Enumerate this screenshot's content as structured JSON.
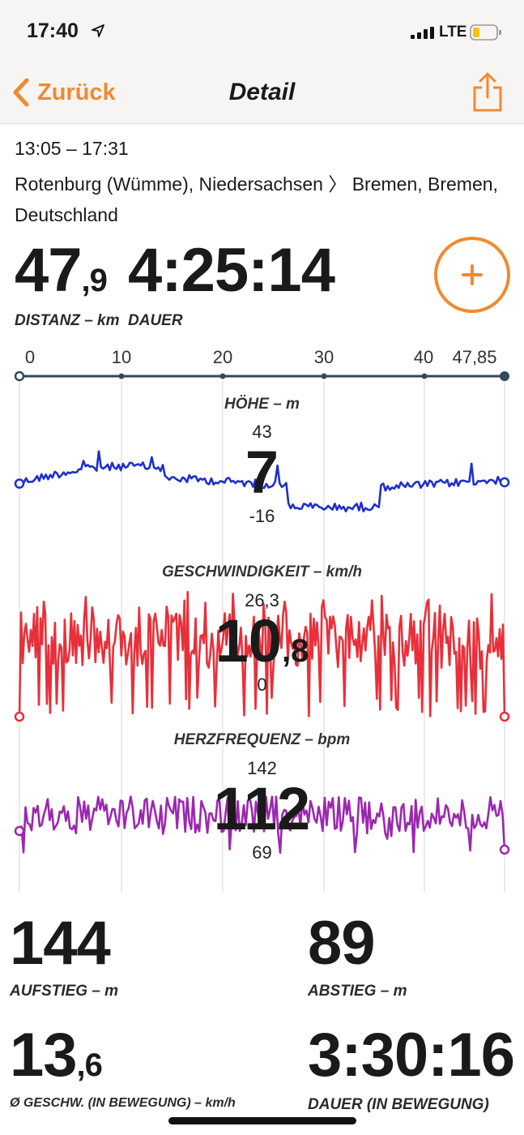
{
  "status": {
    "time": "17:40",
    "network": "LTE"
  },
  "nav": {
    "back_label": "Zurück",
    "title": "Detail"
  },
  "trip": {
    "time_range": "13:05 – 17:31",
    "route": "Rotenburg (Wümme), Niedersachsen 〉 Bremen, Bremen, Deutschland"
  },
  "summary": {
    "distance_int": "47",
    "distance_dec": ",9",
    "distance_label": "DISTANZ – km",
    "duration": "4:25:14",
    "duration_label": "DAUER"
  },
  "distance_axis": [
    "0",
    "10",
    "20",
    "30",
    "40",
    "47,85"
  ],
  "charts": {
    "elevation": {
      "title": "HÖHE – m",
      "max": "43",
      "current_int": "7",
      "current_dec": "",
      "min": "-16",
      "color": "#1f2fcc"
    },
    "speed": {
      "title": "GESCHWINDIGKEIT – km/h",
      "max": "26,3",
      "current_int": "10",
      "current_dec": ",8",
      "min": "0",
      "color": "#e8303a"
    },
    "heart_rate": {
      "title": "HERZFREQUENZ – bpm",
      "max": "142",
      "current_int": "112",
      "current_dec": "",
      "min": "69",
      "color": "#9c27b0"
    }
  },
  "stats": {
    "ascent": "144",
    "ascent_label": "AUFSTIEG – m",
    "descent": "89",
    "descent_label": "ABSTIEG – m",
    "avg_speed_int": "13",
    "avg_speed_dec": ",6",
    "avg_speed_label": "Ø GESCHW. (IN BEWEGUNG) – km/h",
    "moving_time": "3:30:16",
    "moving_time_label": "DAUER (IN BEWEGUNG)"
  },
  "colors": {
    "accent": "#ef8a32"
  }
}
